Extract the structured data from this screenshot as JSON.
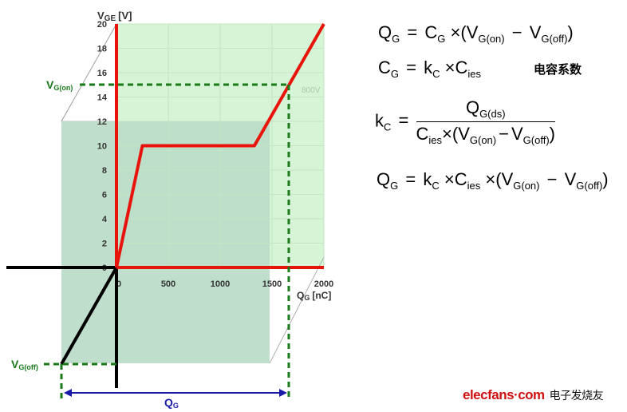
{
  "chart_data": {
    "type": "line",
    "title": "",
    "ylabel": "V",
    "ylabel_sub": "GE",
    "ylabel_unit": "[V]",
    "xlabel": "Q",
    "xlabel_sub": "G",
    "xlabel_unit": "[nC]",
    "xlim": [
      0,
      2000
    ],
    "ylim": [
      0,
      20
    ],
    "x_ticks": [
      0,
      500,
      1000,
      1500,
      2000
    ],
    "y_ticks": [
      0,
      2,
      4,
      6,
      8,
      10,
      12,
      14,
      16,
      18,
      20
    ],
    "series": [
      {
        "name": "VGE",
        "x": [
          0,
          250,
          1330,
          2000
        ],
        "y": [
          0,
          10,
          10,
          20
        ]
      }
    ],
    "annotation_800v": "800V",
    "vg_on_value": 15,
    "vg_on_label": {
      "main": "V",
      "sub": "G(on)"
    },
    "vg_off_label": {
      "main": "V",
      "sub": "G(off)"
    },
    "qg_span_label": {
      "main": "Q",
      "sub": "G"
    },
    "colors": {
      "curve": "#e8140c",
      "dashed": "#1a7a1a",
      "arrow": "#1a1aa8",
      "light_green": "#d8f5d8",
      "dark_green": "#bcdcc8"
    }
  },
  "formulas": {
    "f1": {
      "lhs": "Q",
      "lhs_sub": "G",
      "eq": "=",
      "a": "C",
      "a_sub": "G",
      "times": "×",
      "lp": "(",
      "v1": "V",
      "v1_sub": "G(on)",
      "minus": "−",
      "v2": "V",
      "v2_sub": "G(off)",
      "rp": ")"
    },
    "f2": {
      "lhs": "C",
      "lhs_sub": "G",
      "eq": "=",
      "a": "k",
      "a_sub": "C",
      "times": "×",
      "b": "C",
      "b_sub": "ies",
      "note": "电容系数"
    },
    "f3": {
      "lhs": "k",
      "lhs_sub": "C",
      "eq": "=",
      "num": "Q",
      "num_sub": "G(ds)",
      "d1": "C",
      "d1_sub": "ies",
      "times": "×",
      "lp": "(",
      "v1": "V",
      "v1_sub": "G(on)",
      "minus": "−",
      "v2": "V",
      "v2_sub": "G(off)",
      "rp": ")"
    },
    "f4": {
      "lhs": "Q",
      "lhs_sub": "G",
      "eq": "=",
      "a": "k",
      "a_sub": "C",
      "times": "×",
      "b": "C",
      "b_sub": "ies",
      "times2": "×",
      "lp": "(",
      "v1": "V",
      "v1_sub": "G(on)",
      "minus": "−",
      "v2": "V",
      "v2_sub": "G(off)",
      "rp": ")"
    }
  },
  "watermark": {
    "logo": "elecfans·com",
    "cn": "电子发烧友"
  }
}
